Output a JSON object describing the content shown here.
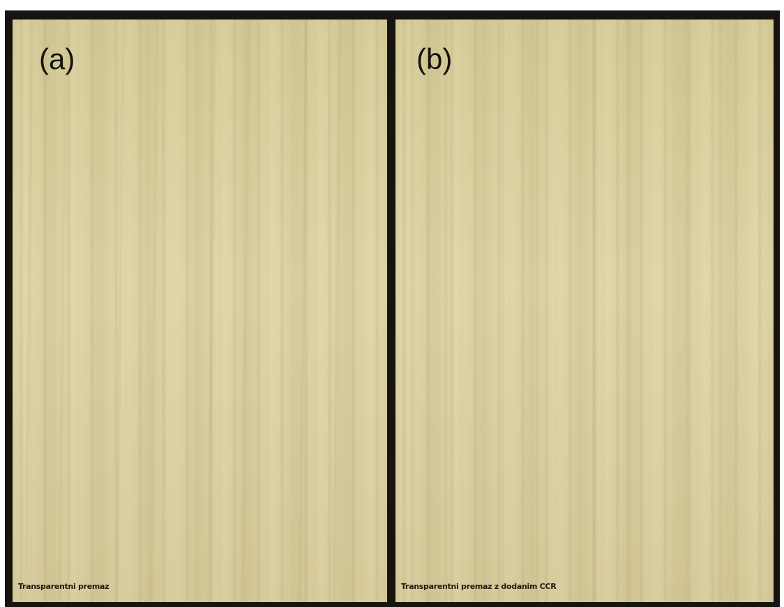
{
  "panels": [
    {
      "label": "(a)",
      "caption": "Transparentni premaz"
    },
    {
      "label": "(b)",
      "caption": "Transparentni premaz z dodanim CCR"
    }
  ],
  "colors": {
    "frame": "#17140f",
    "wood": "#d8cd9d",
    "text": "#16130e"
  }
}
